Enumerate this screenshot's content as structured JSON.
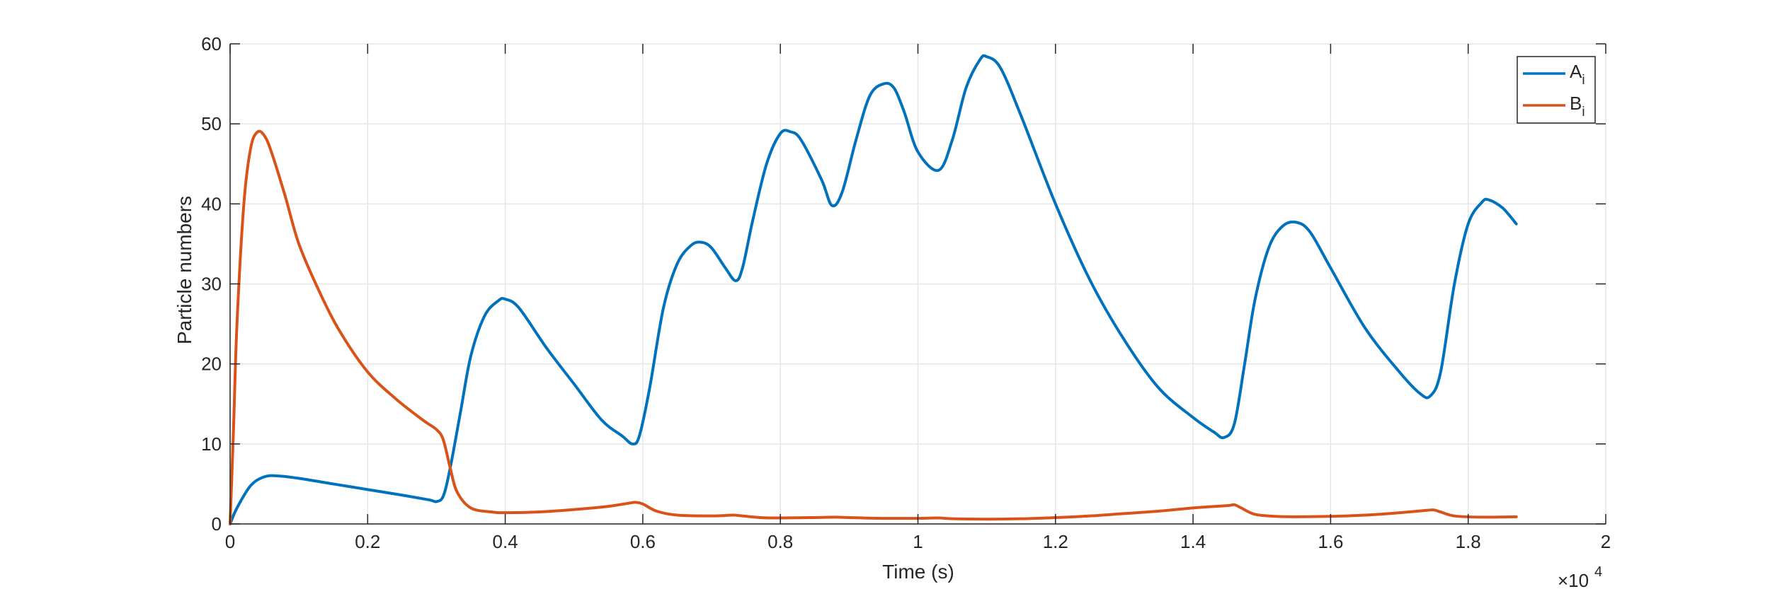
{
  "chart_data": {
    "type": "line",
    "title": "",
    "xlabel": "Time (s)",
    "ylabel": "Particle numbers",
    "x_exponent_label": "×10",
    "x_exponent_power": "4",
    "xlim": [
      0,
      2
    ],
    "ylim": [
      0,
      60
    ],
    "xticks": [
      0,
      0.2,
      0.4,
      0.6,
      0.8,
      1,
      1.2,
      1.4,
      1.6,
      1.8,
      2
    ],
    "xtick_labels": [
      "0",
      "0.2",
      "0.4",
      "0.6",
      "0.8",
      "1",
      "1.2",
      "1.4",
      "1.6",
      "1.8",
      "2"
    ],
    "yticks": [
      0,
      10,
      20,
      30,
      40,
      50,
      60
    ],
    "ytick_labels": [
      "0",
      "10",
      "20",
      "30",
      "40",
      "50",
      "60"
    ],
    "grid": true,
    "legend_position": "top-right",
    "series": [
      {
        "name": "A",
        "name_sub": "i",
        "color": "#0072BD",
        "points": [
          [
            0,
            0
          ],
          [
            0.01,
            2.0
          ],
          [
            0.03,
            4.8
          ],
          [
            0.05,
            5.9
          ],
          [
            0.07,
            6.0
          ],
          [
            0.1,
            5.7
          ],
          [
            0.15,
            5.0
          ],
          [
            0.2,
            4.3
          ],
          [
            0.25,
            3.6
          ],
          [
            0.29,
            3.0
          ],
          [
            0.3,
            2.8
          ],
          [
            0.31,
            3.5
          ],
          [
            0.32,
            7.0
          ],
          [
            0.335,
            14.0
          ],
          [
            0.35,
            21.0
          ],
          [
            0.37,
            26.0
          ],
          [
            0.39,
            27.9
          ],
          [
            0.4,
            28.1
          ],
          [
            0.42,
            27.0
          ],
          [
            0.46,
            22.0
          ],
          [
            0.5,
            17.5
          ],
          [
            0.54,
            13.0
          ],
          [
            0.57,
            11.0
          ],
          [
            0.585,
            10.0
          ],
          [
            0.595,
            11.0
          ],
          [
            0.61,
            17.0
          ],
          [
            0.63,
            27.0
          ],
          [
            0.65,
            32.5
          ],
          [
            0.67,
            34.8
          ],
          [
            0.685,
            35.2
          ],
          [
            0.7,
            34.5
          ],
          [
            0.72,
            32.0
          ],
          [
            0.735,
            30.4
          ],
          [
            0.745,
            32.0
          ],
          [
            0.76,
            38.0
          ],
          [
            0.78,
            45.0
          ],
          [
            0.8,
            48.8
          ],
          [
            0.815,
            49.0
          ],
          [
            0.83,
            48.0
          ],
          [
            0.86,
            43.0
          ],
          [
            0.875,
            39.8
          ],
          [
            0.89,
            41.5
          ],
          [
            0.91,
            48.0
          ],
          [
            0.93,
            53.5
          ],
          [
            0.95,
            55.0
          ],
          [
            0.965,
            54.5
          ],
          [
            0.98,
            51.5
          ],
          [
            1.0,
            46.5
          ],
          [
            1.03,
            44.2
          ],
          [
            1.05,
            48.0
          ],
          [
            1.07,
            54.5
          ],
          [
            1.09,
            58.0
          ],
          [
            1.1,
            58.4
          ],
          [
            1.12,
            57.0
          ],
          [
            1.15,
            51.0
          ],
          [
            1.2,
            40.0
          ],
          [
            1.25,
            30.5
          ],
          [
            1.3,
            23.0
          ],
          [
            1.35,
            17.0
          ],
          [
            1.4,
            13.3
          ],
          [
            1.43,
            11.5
          ],
          [
            1.445,
            10.8
          ],
          [
            1.46,
            12.5
          ],
          [
            1.475,
            20.0
          ],
          [
            1.49,
            28.0
          ],
          [
            1.51,
            34.5
          ],
          [
            1.53,
            37.2
          ],
          [
            1.55,
            37.7
          ],
          [
            1.57,
            36.5
          ],
          [
            1.6,
            32.0
          ],
          [
            1.65,
            24.5
          ],
          [
            1.7,
            19.0
          ],
          [
            1.73,
            16.3
          ],
          [
            1.745,
            16.0
          ],
          [
            1.76,
            19.0
          ],
          [
            1.78,
            30.0
          ],
          [
            1.8,
            37.5
          ],
          [
            1.82,
            40.2
          ],
          [
            1.83,
            40.5
          ],
          [
            1.85,
            39.5
          ],
          [
            1.87,
            37.5
          ]
        ]
      },
      {
        "name": "B",
        "name_sub": "i",
        "color": "#D95319",
        "points": [
          [
            0,
            0
          ],
          [
            0.005,
            12.0
          ],
          [
            0.01,
            25.0
          ],
          [
            0.02,
            40.0
          ],
          [
            0.03,
            47.0
          ],
          [
            0.04,
            49.0
          ],
          [
            0.05,
            48.5
          ],
          [
            0.06,
            46.5
          ],
          [
            0.08,
            41.0
          ],
          [
            0.1,
            35.0
          ],
          [
            0.13,
            29.0
          ],
          [
            0.16,
            24.0
          ],
          [
            0.2,
            19.0
          ],
          [
            0.24,
            15.7
          ],
          [
            0.28,
            13.0
          ],
          [
            0.3,
            11.8
          ],
          [
            0.31,
            10.5
          ],
          [
            0.32,
            7.0
          ],
          [
            0.33,
            4.0
          ],
          [
            0.35,
            2.0
          ],
          [
            0.38,
            1.5
          ],
          [
            0.4,
            1.4
          ],
          [
            0.45,
            1.5
          ],
          [
            0.5,
            1.8
          ],
          [
            0.55,
            2.2
          ],
          [
            0.58,
            2.6
          ],
          [
            0.59,
            2.7
          ],
          [
            0.6,
            2.5
          ],
          [
            0.62,
            1.6
          ],
          [
            0.65,
            1.1
          ],
          [
            0.7,
            1.0
          ],
          [
            0.73,
            1.1
          ],
          [
            0.74,
            1.05
          ],
          [
            0.77,
            0.8
          ],
          [
            0.8,
            0.75
          ],
          [
            0.85,
            0.8
          ],
          [
            0.88,
            0.85
          ],
          [
            0.9,
            0.8
          ],
          [
            0.95,
            0.7
          ],
          [
            1.0,
            0.7
          ],
          [
            1.03,
            0.75
          ],
          [
            1.05,
            0.65
          ],
          [
            1.1,
            0.6
          ],
          [
            1.15,
            0.65
          ],
          [
            1.2,
            0.8
          ],
          [
            1.25,
            1.0
          ],
          [
            1.3,
            1.3
          ],
          [
            1.35,
            1.6
          ],
          [
            1.4,
            2.0
          ],
          [
            1.45,
            2.3
          ],
          [
            1.46,
            2.4
          ],
          [
            1.47,
            2.0
          ],
          [
            1.49,
            1.2
          ],
          [
            1.52,
            0.95
          ],
          [
            1.55,
            0.9
          ],
          [
            1.6,
            0.95
          ],
          [
            1.65,
            1.1
          ],
          [
            1.7,
            1.4
          ],
          [
            1.74,
            1.7
          ],
          [
            1.75,
            1.75
          ],
          [
            1.76,
            1.5
          ],
          [
            1.78,
            1.0
          ],
          [
            1.82,
            0.85
          ],
          [
            1.87,
            0.9
          ]
        ]
      }
    ]
  }
}
